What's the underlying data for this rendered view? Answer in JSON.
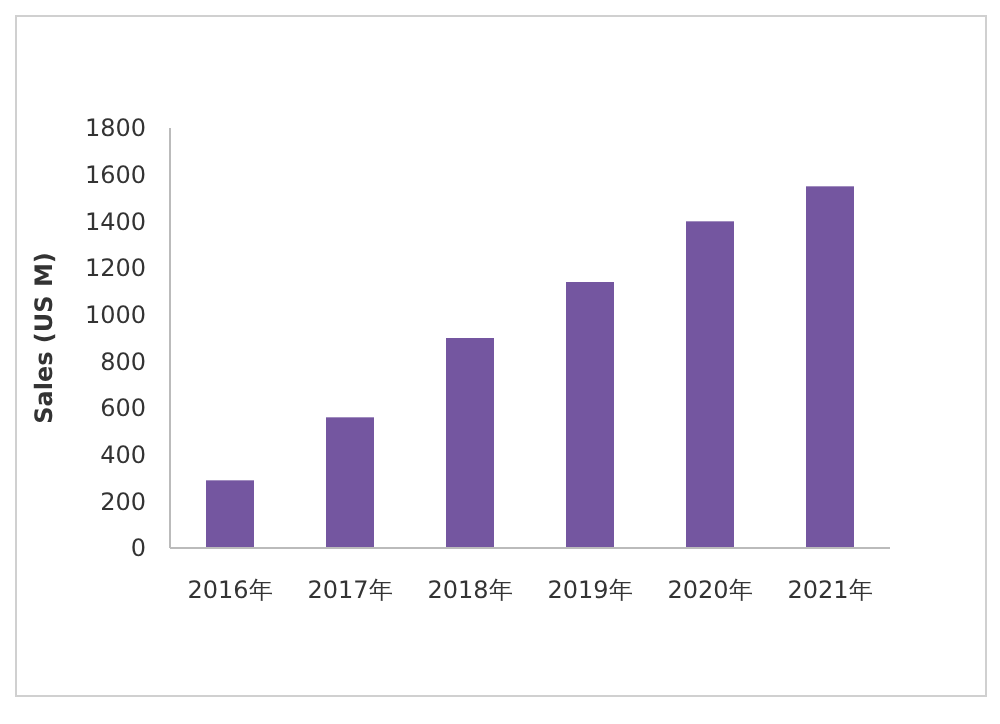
{
  "chart_data": {
    "type": "bar",
    "ylabel": "Sales (US M)",
    "categories": [
      "2016年",
      "2017年",
      "2018年",
      "2019年",
      "2020年",
      "2021年"
    ],
    "values": [
      290,
      560,
      900,
      1140,
      1400,
      1550
    ],
    "color": "#7456a0",
    "ylim": [
      0,
      1800
    ],
    "yticks": [
      0,
      200,
      400,
      600,
      800,
      1000,
      1200,
      1400,
      1600,
      1800
    ],
    "grid": false
  }
}
